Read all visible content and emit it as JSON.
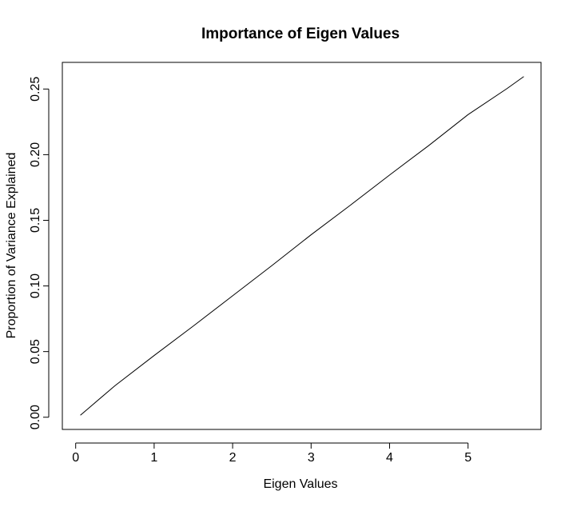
{
  "chart_data": {
    "type": "line",
    "title": "Importance of Eigen Values",
    "xlabel": "Eigen Values",
    "ylabel": "Proportion of Variance Explained",
    "xlim": [
      -0.17,
      5.93
    ],
    "ylim": [
      -0.0093,
      0.2703
    ],
    "xticks": [
      0,
      1,
      2,
      3,
      4,
      5
    ],
    "xtick_labels": [
      "0",
      "1",
      "2",
      "3",
      "4",
      "5"
    ],
    "yticks": [
      0.0,
      0.05,
      0.1,
      0.15,
      0.2,
      0.25
    ],
    "ytick_labels": [
      "0.00",
      "0.05",
      "0.10",
      "0.15",
      "0.20",
      "0.25"
    ],
    "grid": false,
    "legend": "none",
    "line_color": "#000000",
    "series": [
      {
        "x": [
          0.06,
          0.5,
          1.0,
          1.5,
          2.0,
          2.5,
          3.0,
          3.5,
          4.0,
          4.5,
          5.0,
          5.5,
          5.71
        ],
        "values": [
          0.0015,
          0.024,
          0.047,
          0.0695,
          0.0925,
          0.1155,
          0.139,
          0.1615,
          0.1845,
          0.207,
          0.2305,
          0.2505,
          0.2595
        ]
      }
    ]
  }
}
